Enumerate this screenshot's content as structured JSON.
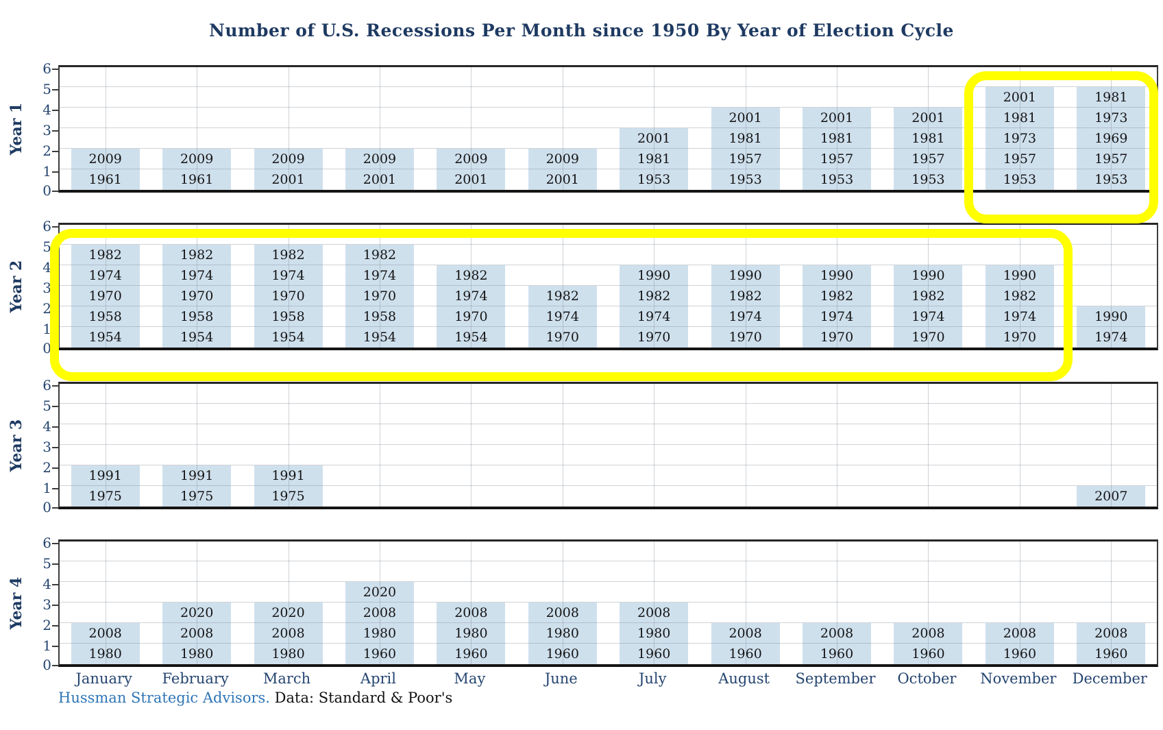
{
  "title": "Number of U.S. Recessions Per Month since 1950 By Year of Election Cycle",
  "footer": {
    "source_link": "Hussman Strategic Advisors.",
    "source_rest": " Data: Standard & Poor's"
  },
  "colors": {
    "bar_fill": "#cfe0ed",
    "highlight_yellow": "#ffff00",
    "navy_text": "#1e3a62",
    "link_blue": "#2e75b6",
    "axis_black": "#141414"
  },
  "chart_data": {
    "type": "bar",
    "stacked": true,
    "title": "Number of U.S. Recessions Per Month since 1950 By Year of Election Cycle",
    "categories": [
      "January",
      "February",
      "March",
      "April",
      "May",
      "June",
      "July",
      "August",
      "September",
      "October",
      "November",
      "December"
    ],
    "ylim": [
      0,
      6
    ],
    "yticks": [
      0,
      1,
      2,
      3,
      4,
      5,
      6
    ],
    "grid": true,
    "bar_unit_note": "each stacked cell = one recession month, labeled with its year; bar height = count",
    "panels": [
      {
        "label": "Year 1",
        "bars": [
          [
            "2009",
            "1961"
          ],
          [
            "2009",
            "1961"
          ],
          [
            "2009",
            "2001"
          ],
          [
            "2009",
            "2001"
          ],
          [
            "2009",
            "2001"
          ],
          [
            "2009",
            "2001"
          ],
          [
            "2001",
            "1981",
            "1953"
          ],
          [
            "2001",
            "1981",
            "1957",
            "1953"
          ],
          [
            "2001",
            "1981",
            "1957",
            "1953"
          ],
          [
            "2001",
            "1981",
            "1957",
            "1953"
          ],
          [
            "2001",
            "1981",
            "1973",
            "1957",
            "1953"
          ],
          [
            "1981",
            "1973",
            "1969",
            "1957",
            "1953"
          ]
        ]
      },
      {
        "label": "Year 2",
        "bars": [
          [
            "1982",
            "1974",
            "1970",
            "1958",
            "1954"
          ],
          [
            "1982",
            "1974",
            "1970",
            "1958",
            "1954"
          ],
          [
            "1982",
            "1974",
            "1970",
            "1958",
            "1954"
          ],
          [
            "1982",
            "1974",
            "1970",
            "1958",
            "1954"
          ],
          [
            "1982",
            "1974",
            "1970",
            "1954"
          ],
          [
            "1982",
            "1974",
            "1970"
          ],
          [
            "1990",
            "1982",
            "1974",
            "1970"
          ],
          [
            "1990",
            "1982",
            "1974",
            "1970"
          ],
          [
            "1990",
            "1982",
            "1974",
            "1970"
          ],
          [
            "1990",
            "1982",
            "1974",
            "1970"
          ],
          [
            "1990",
            "1982",
            "1974",
            "1970"
          ],
          [
            "1990",
            "1974"
          ]
        ]
      },
      {
        "label": "Year 3",
        "bars": [
          [
            "1991",
            "1975"
          ],
          [
            "1991",
            "1975"
          ],
          [
            "1991",
            "1975"
          ],
          [],
          [],
          [],
          [],
          [],
          [],
          [],
          [],
          [
            "2007"
          ]
        ]
      },
      {
        "label": "Year 4",
        "bars": [
          [
            "2008",
            "1980"
          ],
          [
            "2020",
            "2008",
            "1980"
          ],
          [
            "2020",
            "2008",
            "1980"
          ],
          [
            "2020",
            "2008",
            "1980",
            "1960"
          ],
          [
            "2008",
            "1980",
            "1960"
          ],
          [
            "2008",
            "1980",
            "1960"
          ],
          [
            "2008",
            "1980",
            "1960"
          ],
          [
            "2008",
            "1960"
          ],
          [
            "2008",
            "1960"
          ],
          [
            "2008",
            "1960"
          ],
          [
            "2008",
            "1960"
          ],
          [
            "2008",
            "1960"
          ]
        ]
      }
    ],
    "highlights": [
      {
        "panel": "Year 1",
        "from_month": "November",
        "to_month": "December"
      },
      {
        "panel": "Year 2",
        "from_month": "January",
        "to_month": "November"
      }
    ],
    "legend": "none"
  }
}
